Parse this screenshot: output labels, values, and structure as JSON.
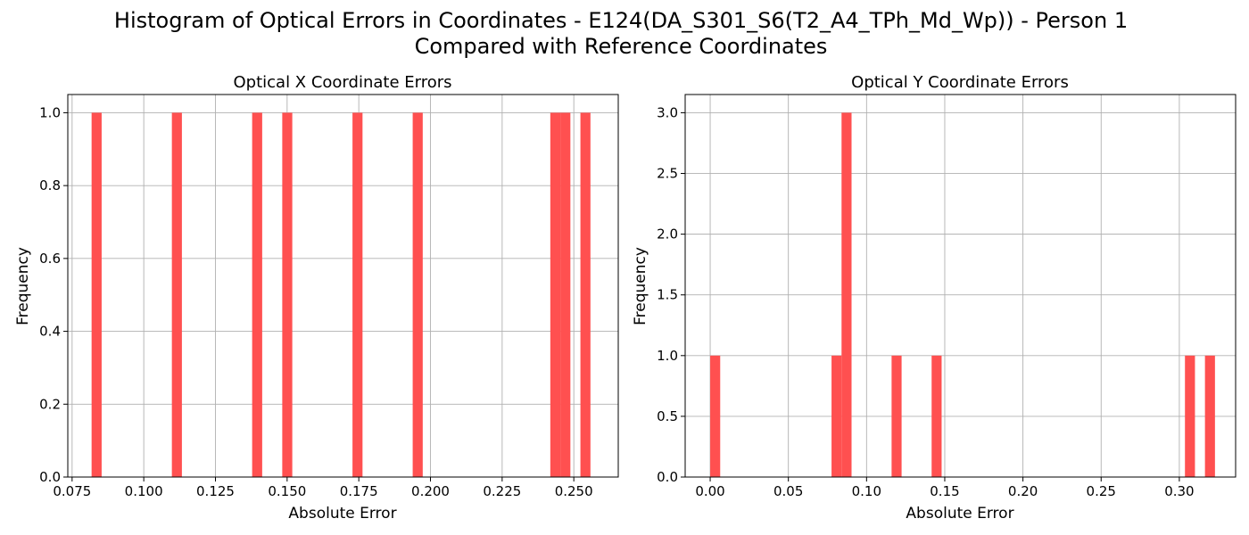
{
  "suptitle": {
    "line1": "Histogram of Optical Errors in Coordinates - E124(DA_S301_S6(T2_A4_TPh_Md_Wp)) - Person 1",
    "line2": "Compared with Reference Coordinates"
  },
  "colors": {
    "bar": "#ff5050",
    "grid": "#b0b0b0"
  },
  "chart_data": [
    {
      "type": "bar",
      "title": "Optical X Coordinate Errors",
      "xlabel": "Absolute Error",
      "ylabel": "Frequency",
      "xlim": [
        0.0735,
        0.2655
      ],
      "ylim": [
        0,
        1.05
      ],
      "grid": true,
      "bin_width": 0.0035,
      "xticks": [
        0.075,
        0.1,
        0.125,
        0.15,
        0.175,
        0.2,
        0.225,
        0.25
      ],
      "xtick_labels": [
        "0.075",
        "0.100",
        "0.125",
        "0.150",
        "0.175",
        "0.200",
        "0.225",
        "0.250"
      ],
      "yticks": [
        0.0,
        0.2,
        0.4,
        0.6,
        0.8,
        1.0
      ],
      "ytick_labels": [
        "0.0",
        "0.2",
        "0.4",
        "0.6",
        "0.8",
        "1.0"
      ],
      "bins": [
        {
          "x0": 0.0818,
          "count": 1
        },
        {
          "x0": 0.1098,
          "count": 1
        },
        {
          "x0": 0.1378,
          "count": 1
        },
        {
          "x0": 0.1483,
          "count": 1
        },
        {
          "x0": 0.1728,
          "count": 1
        },
        {
          "x0": 0.1938,
          "count": 1
        },
        {
          "x0": 0.2418,
          "count": 1
        },
        {
          "x0": 0.2453,
          "count": 1
        },
        {
          "x0": 0.2523,
          "count": 1
        }
      ]
    },
    {
      "type": "bar",
      "title": "Optical Y Coordinate Errors",
      "xlabel": "Absolute Error",
      "ylabel": "Frequency",
      "xlim": [
        -0.016,
        0.336
      ],
      "ylim": [
        0,
        3.15
      ],
      "grid": true,
      "bin_width": 0.0064,
      "xticks": [
        0.0,
        0.05,
        0.1,
        0.15,
        0.2,
        0.25,
        0.3
      ],
      "xtick_labels": [
        "0.00",
        "0.05",
        "0.10",
        "0.15",
        "0.20",
        "0.25",
        "0.30"
      ],
      "yticks": [
        0.0,
        0.5,
        1.0,
        1.5,
        2.0,
        2.5,
        3.0
      ],
      "ytick_labels": [
        "0.0",
        "0.5",
        "1.0",
        "1.5",
        "2.0",
        "2.5",
        "3.0"
      ],
      "bins": [
        {
          "x0": 0.0,
          "count": 1
        },
        {
          "x0": 0.0776,
          "count": 1
        },
        {
          "x0": 0.084,
          "count": 3
        },
        {
          "x0": 0.116,
          "count": 1
        },
        {
          "x0": 0.1416,
          "count": 1
        },
        {
          "x0": 0.3036,
          "count": 1
        },
        {
          "x0": 0.3164,
          "count": 1
        }
      ]
    }
  ]
}
